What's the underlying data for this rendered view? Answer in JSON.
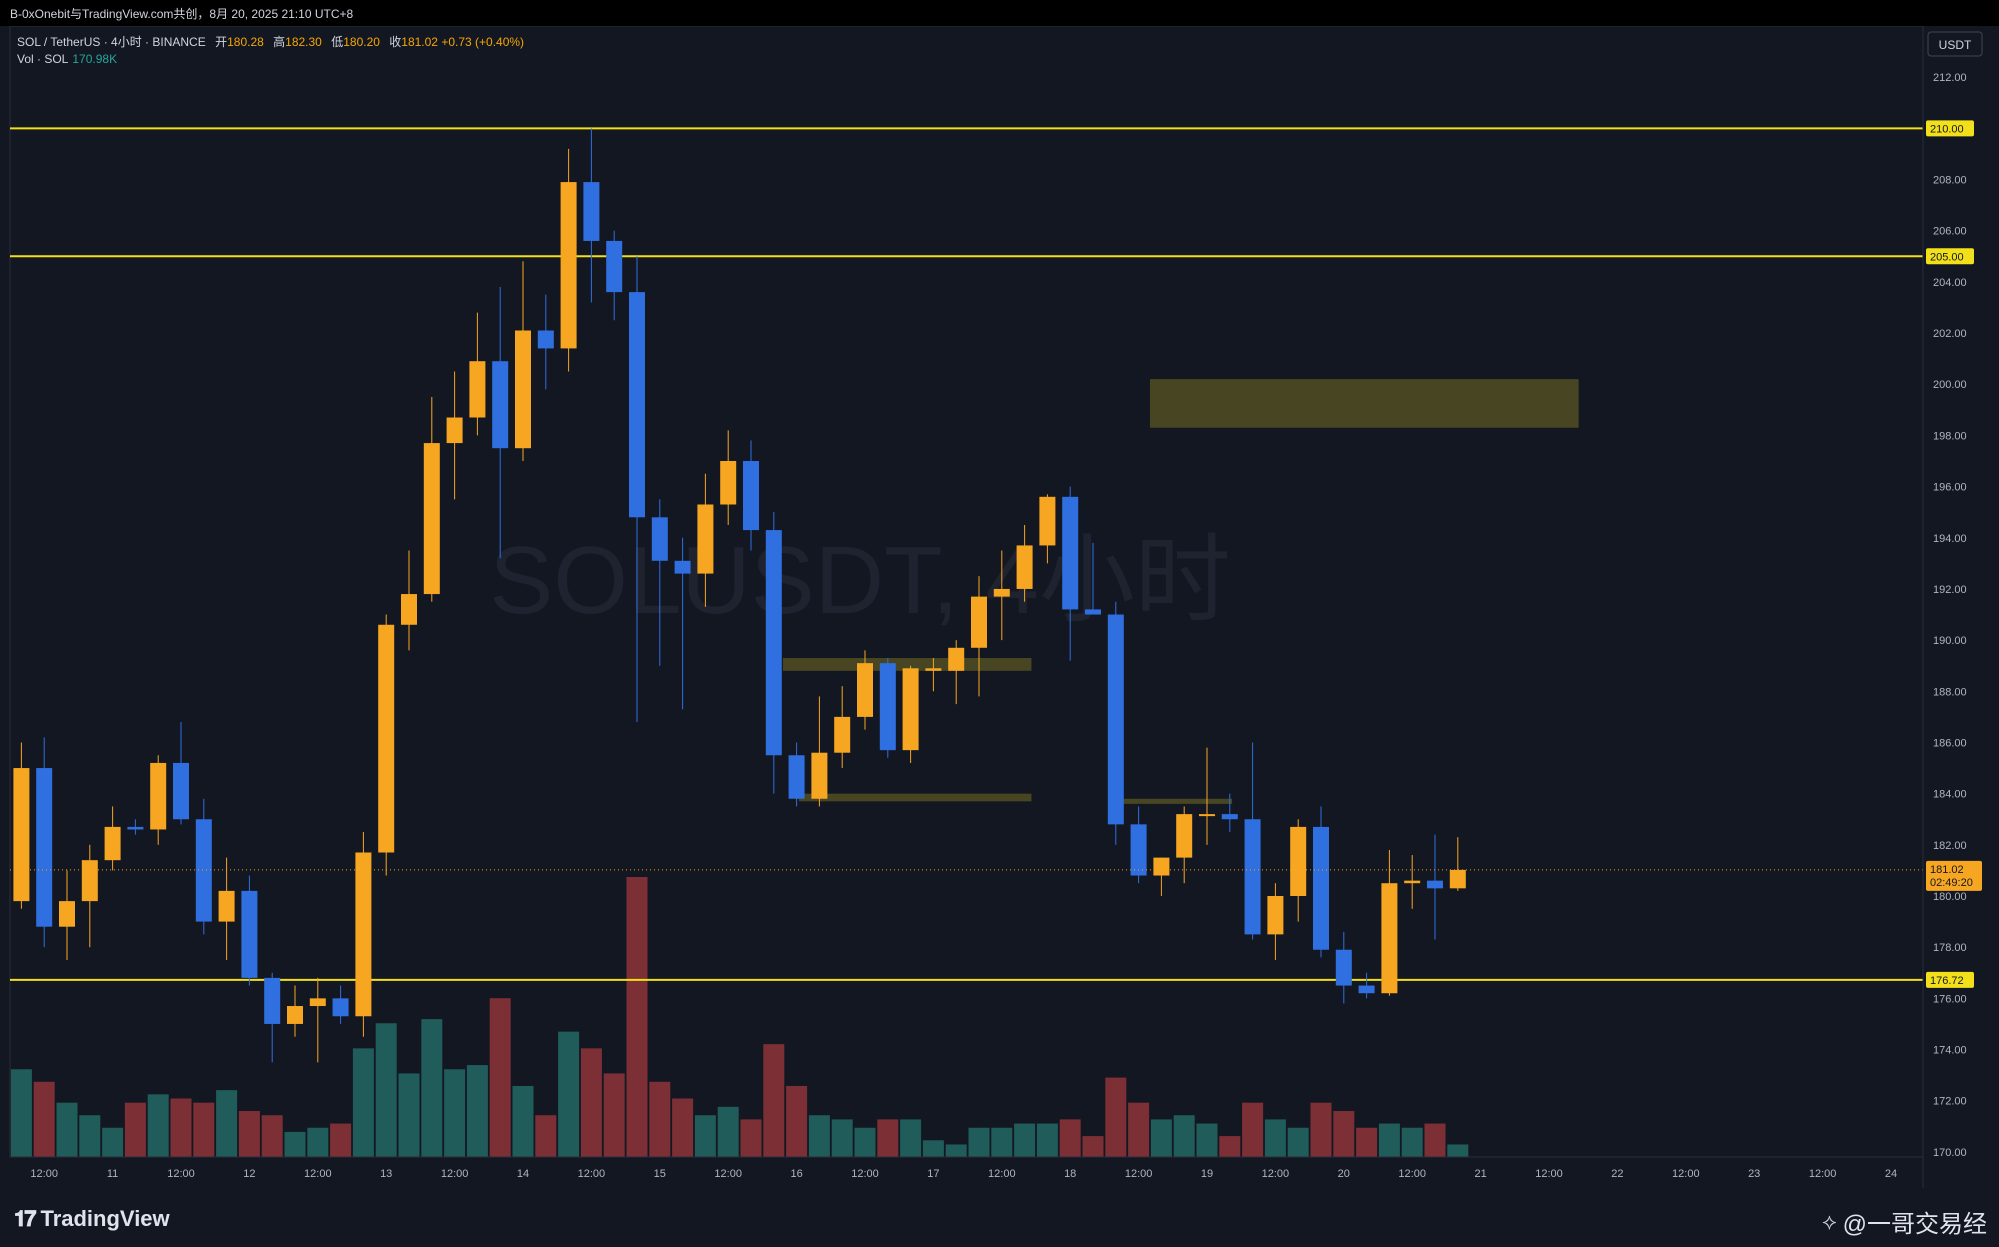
{
  "share_header": "B-0xOnebit与TradingView.com共创，8月 20, 2025 21:10 UTC+8",
  "legend": {
    "symbol": "SOL / TetherUS · 4小时 · BINANCE",
    "open_label": "开",
    "open": "180.28",
    "high_label": "高",
    "high": "182.30",
    "low_label": "低",
    "low": "180.20",
    "close_label": "收",
    "close": "181.02",
    "change": "+0.73 (+0.40%)",
    "vol_label": "Vol · SOL",
    "vol_value": "170.98K"
  },
  "watermark": "SOLUSDT, 4小时",
  "currency": "USDT",
  "price_label": {
    "value": "181.02",
    "countdown": "02:49:20"
  },
  "footer": {
    "brand": "TradingView",
    "author": "@一哥交易经"
  },
  "colors": {
    "bg": "#131722",
    "up": "#f7a621",
    "down": "#2f6fe0",
    "vol_up": "#1f5c5a",
    "vol_down": "#7c3036",
    "level": "#f2e01a",
    "zone": "#5e5a22"
  },
  "chart_data": {
    "type": "candlestick",
    "ylim": [
      169.8,
      214
    ],
    "y_ticks": [
      170,
      172,
      174,
      176,
      178,
      180,
      182,
      184,
      186,
      188,
      190,
      192,
      194,
      196,
      198,
      200,
      202,
      204,
      206,
      208,
      212
    ],
    "x_tick_labels": [
      "12:00",
      "11",
      "12:00",
      "12",
      "12:00",
      "13",
      "12:00",
      "14",
      "12:00",
      "15",
      "12:00",
      "16",
      "12:00",
      "17",
      "12:00",
      "18",
      "12:00",
      "19",
      "12:00",
      "20",
      "12:00",
      "21",
      "12:00",
      "22",
      "12:00",
      "23",
      "12:00",
      "24"
    ],
    "x_tick_slots": [
      1.5,
      4.5,
      7.5,
      10.5,
      13.5,
      16.5,
      19.5,
      22.5,
      25.5,
      28.5,
      31.5,
      34.5,
      37.5,
      40.5,
      43.5,
      46.5,
      49.5,
      52.5,
      55.5,
      58.5,
      61.5,
      64.5,
      67.5,
      70.5,
      73.5,
      76.5,
      79.5,
      82.5
    ],
    "candles": [
      {
        "o": 179.8,
        "h": 186.0,
        "l": 179.5,
        "c": 185.0,
        "v": 21
      },
      {
        "o": 185.0,
        "h": 186.2,
        "l": 178.0,
        "c": 178.8,
        "v": 18
      },
      {
        "o": 178.8,
        "h": 181.0,
        "l": 177.5,
        "c": 179.8,
        "v": 13
      },
      {
        "o": 179.8,
        "h": 182.0,
        "l": 178.0,
        "c": 181.4,
        "v": 10
      },
      {
        "o": 181.4,
        "h": 183.5,
        "l": 181.0,
        "c": 182.7,
        "v": 7
      },
      {
        "o": 182.7,
        "h": 183.0,
        "l": 182.4,
        "c": 182.6,
        "v": 13
      },
      {
        "o": 182.6,
        "h": 185.5,
        "l": 182.0,
        "c": 185.2,
        "v": 15
      },
      {
        "o": 185.2,
        "h": 186.8,
        "l": 182.8,
        "c": 183.0,
        "v": 14
      },
      {
        "o": 183.0,
        "h": 183.8,
        "l": 178.5,
        "c": 179.0,
        "v": 13
      },
      {
        "o": 179.0,
        "h": 181.5,
        "l": 177.5,
        "c": 180.2,
        "v": 16
      },
      {
        "o": 180.2,
        "h": 180.8,
        "l": 176.5,
        "c": 176.8,
        "v": 11
      },
      {
        "o": 176.8,
        "h": 177.0,
        "l": 173.5,
        "c": 175.0,
        "v": 10
      },
      {
        "o": 175.0,
        "h": 176.5,
        "l": 174.5,
        "c": 175.7,
        "v": 6
      },
      {
        "o": 175.7,
        "h": 176.8,
        "l": 173.5,
        "c": 176.0,
        "v": 7
      },
      {
        "o": 176.0,
        "h": 176.5,
        "l": 175.0,
        "c": 175.3,
        "v": 8
      },
      {
        "o": 175.3,
        "h": 182.5,
        "l": 174.5,
        "c": 181.7,
        "v": 26
      },
      {
        "o": 181.7,
        "h": 191.0,
        "l": 180.8,
        "c": 190.6,
        "v": 32
      },
      {
        "o": 190.6,
        "h": 193.5,
        "l": 189.6,
        "c": 191.8,
        "v": 20
      },
      {
        "o": 191.8,
        "h": 199.5,
        "l": 191.5,
        "c": 197.7,
        "v": 33
      },
      {
        "o": 197.7,
        "h": 200.5,
        "l": 195.5,
        "c": 198.7,
        "v": 21
      },
      {
        "o": 198.7,
        "h": 202.8,
        "l": 198.0,
        "c": 200.9,
        "v": 22
      },
      {
        "o": 200.9,
        "h": 203.8,
        "l": 193.2,
        "c": 197.5,
        "v": 38
      },
      {
        "o": 197.5,
        "h": 204.8,
        "l": 197.0,
        "c": 202.1,
        "v": 17
      },
      {
        "o": 202.1,
        "h": 203.5,
        "l": 199.8,
        "c": 201.4,
        "v": 10
      },
      {
        "o": 201.4,
        "h": 209.2,
        "l": 200.5,
        "c": 207.9,
        "v": 30
      },
      {
        "o": 207.9,
        "h": 210.0,
        "l": 203.2,
        "c": 205.6,
        "v": 26
      },
      {
        "o": 205.6,
        "h": 206.0,
        "l": 202.5,
        "c": 203.6,
        "v": 20
      },
      {
        "o": 203.6,
        "h": 205.0,
        "l": 186.8,
        "c": 194.8,
        "v": 67
      },
      {
        "o": 194.8,
        "h": 195.5,
        "l": 189.0,
        "c": 193.1,
        "v": 18
      },
      {
        "o": 193.1,
        "h": 194.0,
        "l": 187.3,
        "c": 192.6,
        "v": 14
      },
      {
        "o": 192.6,
        "h": 196.5,
        "l": 191.3,
        "c": 195.3,
        "v": 10
      },
      {
        "o": 195.3,
        "h": 198.2,
        "l": 194.5,
        "c": 197.0,
        "v": 12
      },
      {
        "o": 197.0,
        "h": 197.8,
        "l": 193.5,
        "c": 194.3,
        "v": 9
      },
      {
        "o": 194.3,
        "h": 195.0,
        "l": 184.0,
        "c": 185.5,
        "v": 27
      },
      {
        "o": 185.5,
        "h": 186.0,
        "l": 183.5,
        "c": 183.8,
        "v": 17
      },
      {
        "o": 183.8,
        "h": 187.8,
        "l": 183.5,
        "c": 185.6,
        "v": 10
      },
      {
        "o": 185.6,
        "h": 188.2,
        "l": 185.0,
        "c": 187.0,
        "v": 9
      },
      {
        "o": 187.0,
        "h": 189.6,
        "l": 186.5,
        "c": 189.1,
        "v": 7
      },
      {
        "o": 189.1,
        "h": 189.3,
        "l": 185.4,
        "c": 185.7,
        "v": 9
      },
      {
        "o": 185.7,
        "h": 189.0,
        "l": 185.2,
        "c": 188.9,
        "v": 9
      },
      {
        "o": 188.8,
        "h": 189.3,
        "l": 188.0,
        "c": 188.9,
        "v": 4
      },
      {
        "o": 188.8,
        "h": 190.0,
        "l": 187.5,
        "c": 189.7,
        "v": 3
      },
      {
        "o": 189.7,
        "h": 192.5,
        "l": 187.8,
        "c": 191.7,
        "v": 7
      },
      {
        "o": 191.7,
        "h": 193.5,
        "l": 190.0,
        "c": 192.0,
        "v": 7
      },
      {
        "o": 192.0,
        "h": 194.5,
        "l": 191.5,
        "c": 193.7,
        "v": 8
      },
      {
        "o": 193.7,
        "h": 195.7,
        "l": 193.0,
        "c": 195.6,
        "v": 8
      },
      {
        "o": 195.6,
        "h": 196.0,
        "l": 189.2,
        "c": 191.2,
        "v": 9
      },
      {
        "o": 191.2,
        "h": 193.8,
        "l": 191.0,
        "c": 191.0,
        "v": 5
      },
      {
        "o": 191.0,
        "h": 191.5,
        "l": 182.0,
        "c": 182.8,
        "v": 19
      },
      {
        "o": 182.8,
        "h": 183.5,
        "l": 180.5,
        "c": 180.8,
        "v": 13
      },
      {
        "o": 180.8,
        "h": 181.5,
        "l": 180.0,
        "c": 181.5,
        "v": 9
      },
      {
        "o": 181.5,
        "h": 183.5,
        "l": 180.5,
        "c": 183.2,
        "v": 10
      },
      {
        "o": 183.2,
        "h": 185.8,
        "l": 182.0,
        "c": 183.2,
        "v": 8
      },
      {
        "o": 183.2,
        "h": 184.0,
        "l": 182.5,
        "c": 183.0,
        "v": 5
      },
      {
        "o": 183.0,
        "h": 186.0,
        "l": 178.3,
        "c": 178.5,
        "v": 13
      },
      {
        "o": 178.5,
        "h": 180.5,
        "l": 177.5,
        "c": 180.0,
        "v": 9
      },
      {
        "o": 180.0,
        "h": 183.0,
        "l": 179.0,
        "c": 182.7,
        "v": 7
      },
      {
        "o": 182.7,
        "h": 183.5,
        "l": 177.6,
        "c": 177.9,
        "v": 13
      },
      {
        "o": 177.9,
        "h": 178.6,
        "l": 175.8,
        "c": 176.5,
        "v": 11
      },
      {
        "o": 176.5,
        "h": 177.0,
        "l": 176.0,
        "c": 176.2,
        "v": 7
      },
      {
        "o": 176.2,
        "h": 181.8,
        "l": 176.1,
        "c": 180.5,
        "v": 8
      },
      {
        "o": 180.5,
        "h": 181.6,
        "l": 179.5,
        "c": 180.6,
        "v": 7
      },
      {
        "o": 180.6,
        "h": 182.4,
        "l": 178.3,
        "c": 180.3,
        "v": 8
      },
      {
        "o": 180.3,
        "h": 182.3,
        "l": 180.2,
        "c": 181.02,
        "v": 3
      }
    ],
    "levels": [
      {
        "price": 210.0,
        "label": "210.00"
      },
      {
        "price": 205.0,
        "label": "205.00"
      },
      {
        "price": 176.72,
        "label": "176.72"
      }
    ],
    "zones": [
      {
        "from_slot": 50.0,
        "to_slot": 68.8,
        "top": 200.2,
        "bottom": 198.3
      },
      {
        "from_slot": 33.9,
        "to_slot": 44.8,
        "top": 189.3,
        "bottom": 188.8
      },
      {
        "from_slot": 34.6,
        "to_slot": 44.8,
        "top": 184.0,
        "bottom": 183.7
      },
      {
        "from_slot": 48.8,
        "to_slot": 53.6,
        "top": 183.8,
        "bottom": 183.6
      }
    ]
  }
}
